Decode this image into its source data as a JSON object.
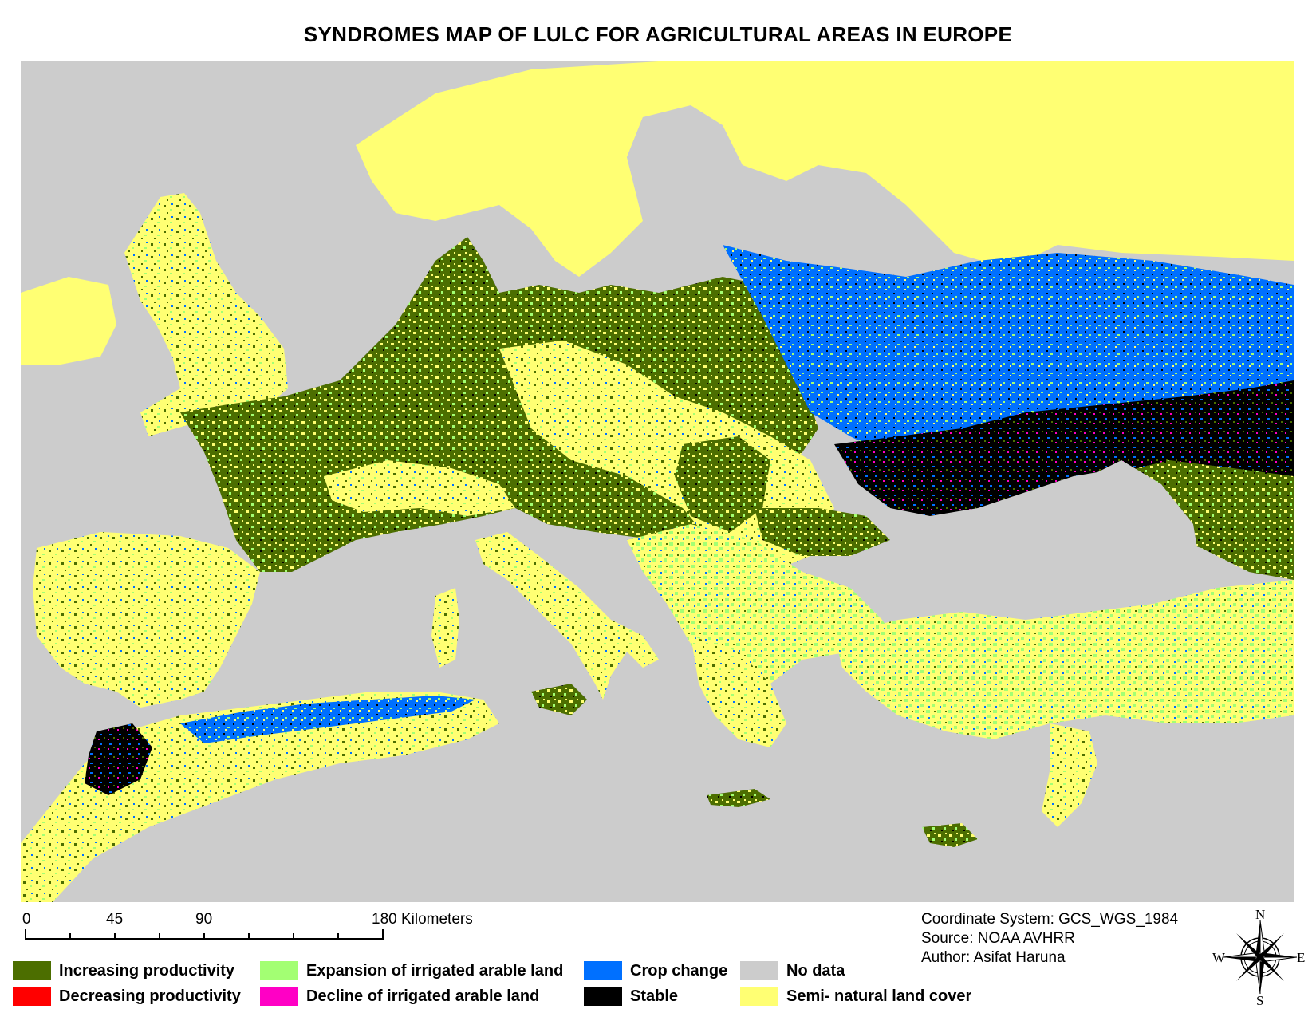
{
  "title": "SYNDROMES  MAP OF LULC FOR AGRICULTURAL AREAS IN EUROPE",
  "scale": {
    "ticks": [
      "0",
      "45",
      "90",
      "180 Kilometers"
    ]
  },
  "meta": {
    "coordinate_system": "Coordinate System: GCS_WGS_1984",
    "source": "Source: NOAA AVHRR",
    "author": "Author: Asifat Haruna"
  },
  "compass": {
    "n": "N",
    "s": "S",
    "e": "E",
    "w": "W"
  },
  "legend": [
    {
      "label": "Increasing productivity",
      "color": "#4c6e00"
    },
    {
      "label": "Decreasing productivity",
      "color": "#ff0000"
    },
    {
      "label": "Expansion of irrigated arable land",
      "color": "#a3ff73"
    },
    {
      "label": "Decline of irrigated arable land",
      "color": "#ff00c5"
    },
    {
      "label": "Crop change",
      "color": "#0070ff"
    },
    {
      "label": "Stable",
      "color": "#000000"
    },
    {
      "label": "No data",
      "color": "#cccccc"
    },
    {
      "label": "Semi- natural land cover",
      "color": "#ffff73"
    }
  ],
  "colors": {
    "no_data": "#cccccc",
    "semi_natural": "#ffff73",
    "increasing": "#4c6e00",
    "expansion": "#a3ff73",
    "crop_change": "#0070ff",
    "stable": "#000000",
    "decline": "#ff00c5",
    "decreasing": "#ff0000"
  }
}
